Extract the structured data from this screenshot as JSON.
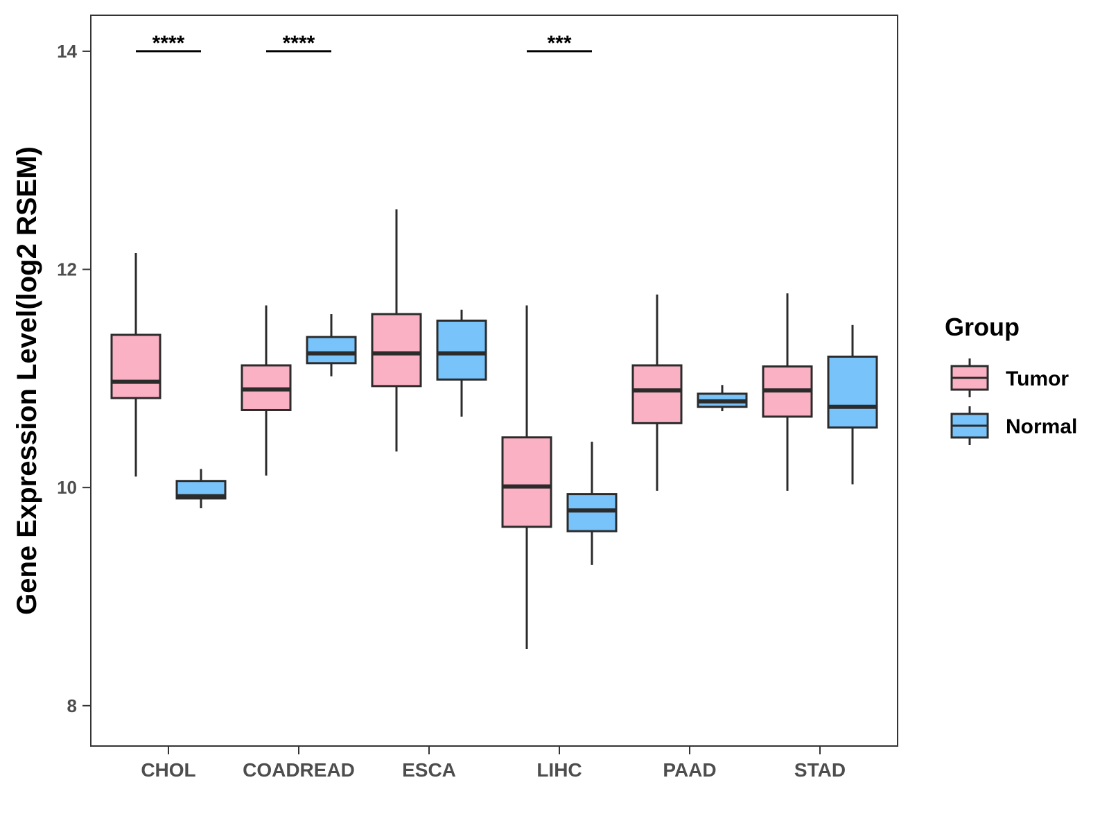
{
  "chart_data": {
    "type": "boxplot",
    "title": "",
    "xlabel": "",
    "ylabel": "Gene Expression Level(log2 RSEM)",
    "ylim": [
      7.63,
      14.33
    ],
    "yticks": [
      8,
      10,
      12,
      14
    ],
    "grid": false,
    "legend": {
      "title": "Group",
      "position": "right",
      "entries": [
        {
          "name": "Tumor",
          "color": "#FBB1C4"
        },
        {
          "name": "Normal",
          "color": "#77C3FA"
        }
      ]
    },
    "categories": [
      "CHOL",
      "COADREAD",
      "ESCA",
      "LIHC",
      "PAAD",
      "STAD"
    ],
    "series": [
      {
        "name": "Tumor",
        "color": "#FBB1C4",
        "boxes": [
          {
            "min": 10.1,
            "q1": 10.82,
            "median": 10.97,
            "q3": 11.4,
            "max": 12.15
          },
          {
            "min": 10.11,
            "q1": 10.71,
            "median": 10.9,
            "q3": 11.12,
            "max": 11.67
          },
          {
            "min": 10.33,
            "q1": 10.93,
            "median": 11.23,
            "q3": 11.59,
            "max": 12.55
          },
          {
            "min": 8.52,
            "q1": 9.64,
            "median": 10.01,
            "q3": 10.46,
            "max": 11.67
          },
          {
            "min": 9.97,
            "q1": 10.59,
            "median": 10.89,
            "q3": 11.12,
            "max": 11.77
          },
          {
            "min": 9.97,
            "q1": 10.65,
            "median": 10.89,
            "q3": 11.11,
            "max": 11.78
          }
        ]
      },
      {
        "name": "Normal",
        "color": "#77C3FA",
        "boxes": [
          {
            "min": 9.81,
            "q1": 9.9,
            "median": 9.92,
            "q3": 10.06,
            "max": 10.17
          },
          {
            "min": 11.02,
            "q1": 11.14,
            "median": 11.23,
            "q3": 11.38,
            "max": 11.59
          },
          {
            "min": 10.65,
            "q1": 10.99,
            "median": 11.23,
            "q3": 11.53,
            "max": 11.63
          },
          {
            "min": 9.29,
            "q1": 9.6,
            "median": 9.79,
            "q3": 9.94,
            "max": 10.42
          },
          {
            "min": 10.7,
            "q1": 10.74,
            "median": 10.79,
            "q3": 10.86,
            "max": 10.94
          },
          {
            "min": 10.03,
            "q1": 10.55,
            "median": 10.74,
            "q3": 11.2,
            "max": 11.49
          }
        ]
      }
    ],
    "annotations": [
      {
        "category": "CHOL",
        "y": 14.0,
        "text": "****"
      },
      {
        "category": "COADREAD",
        "y": 14.0,
        "text": "****"
      },
      {
        "category": "LIHC",
        "y": 14.0,
        "text": "***"
      }
    ]
  }
}
